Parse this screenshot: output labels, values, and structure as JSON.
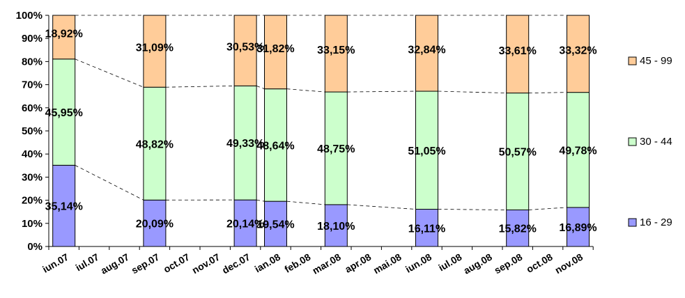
{
  "chart_data": {
    "type": "bar",
    "stacked": "percent",
    "categories": [
      "iun.07",
      "iul.07",
      "aug.07",
      "sep.07",
      "oct.07",
      "nov.07",
      "dec.07",
      "ian.08",
      "feb.08",
      "mar.08",
      "apr.08",
      "mai.08",
      "iun.08",
      "iul.08",
      "aug.08",
      "sep.08",
      "oct.08",
      "nov.08"
    ],
    "series": [
      {
        "name": "16 - 29",
        "color": "#9999ff",
        "values": [
          35.14,
          null,
          null,
          20.09,
          null,
          null,
          20.14,
          19.54,
          null,
          18.1,
          null,
          null,
          16.11,
          null,
          null,
          15.82,
          null,
          16.89
        ],
        "labels": [
          "35,14%",
          null,
          null,
          "20,09%",
          null,
          null,
          "20,14%",
          "19,54%",
          null,
          "18,10%",
          null,
          null,
          "16,11%",
          null,
          null,
          "15,82%",
          null,
          "16,89%"
        ]
      },
      {
        "name": "30 - 44",
        "color": "#ccffcc",
        "values": [
          45.95,
          null,
          null,
          48.82,
          null,
          null,
          49.33,
          48.64,
          null,
          48.75,
          null,
          null,
          51.05,
          null,
          null,
          50.57,
          null,
          49.78
        ],
        "labels": [
          "45,95%",
          null,
          null,
          "48,82%",
          null,
          null,
          "49,33%",
          "48,64%",
          null,
          "48,75%",
          null,
          null,
          "51,05%",
          null,
          null,
          "50,57%",
          null,
          "49,78%"
        ]
      },
      {
        "name": "45 - 99",
        "color": "#ffcc99",
        "values": [
          18.92,
          null,
          null,
          31.09,
          null,
          null,
          30.53,
          31.82,
          null,
          33.15,
          null,
          null,
          32.84,
          null,
          null,
          33.61,
          null,
          33.32
        ],
        "labels": [
          "18,92%",
          null,
          null,
          "31,09%",
          null,
          null,
          "30,53%",
          "31,82%",
          null,
          "33,15%",
          null,
          null,
          "32,84%",
          null,
          null,
          "33,61%",
          null,
          "33,32%"
        ]
      }
    ],
    "ylim": [
      0,
      100
    ],
    "yticks": [
      "0%",
      "10%",
      "20%",
      "30%",
      "40%",
      "50%",
      "60%",
      "70%",
      "80%",
      "90%",
      "100%"
    ],
    "series_lines": true,
    "legend_position": "right",
    "grid": false
  }
}
